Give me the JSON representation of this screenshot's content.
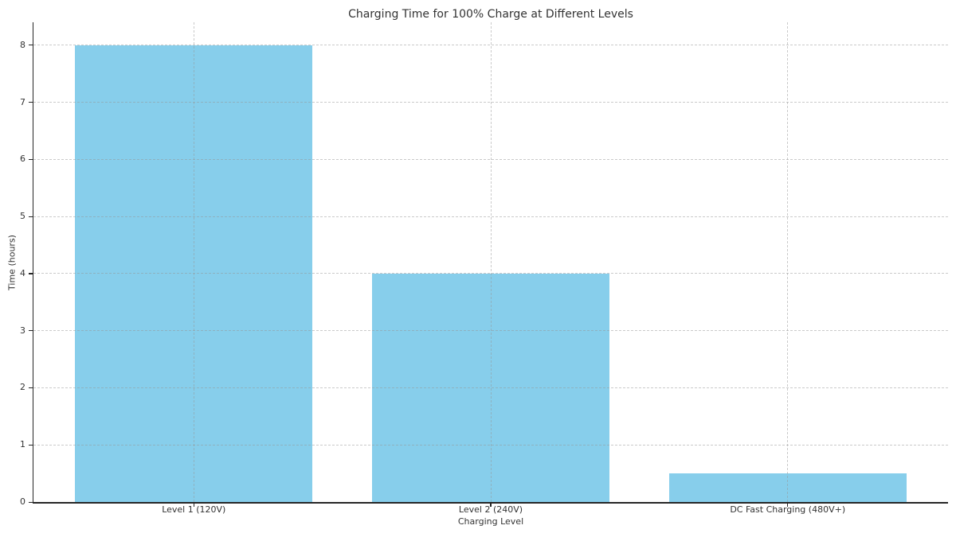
{
  "chart_data": {
    "type": "bar",
    "title": "Charging Time for 100% Charge at Different Levels",
    "xlabel": "Charging Level",
    "ylabel": "Time (hours)",
    "categories": [
      "Level 1 (120V)",
      "Level 2 (240V)",
      "DC Fast Charging (480V+)"
    ],
    "values": [
      8,
      4,
      0.5
    ],
    "yticks": [
      "0",
      "1",
      "2",
      "3",
      "4",
      "5",
      "6",
      "7",
      "8"
    ],
    "ylim": [
      0,
      8.4
    ],
    "bar_width_fraction": 0.8,
    "legend": "none",
    "grid": "horizontal and vertical, dashed, drawn above bars",
    "colors": {
      "bar": "#87CEEB",
      "grid": "rgba(150,150,150,0.5)",
      "axis": "#262626",
      "text": "#333333",
      "background": "#ffffff"
    }
  }
}
